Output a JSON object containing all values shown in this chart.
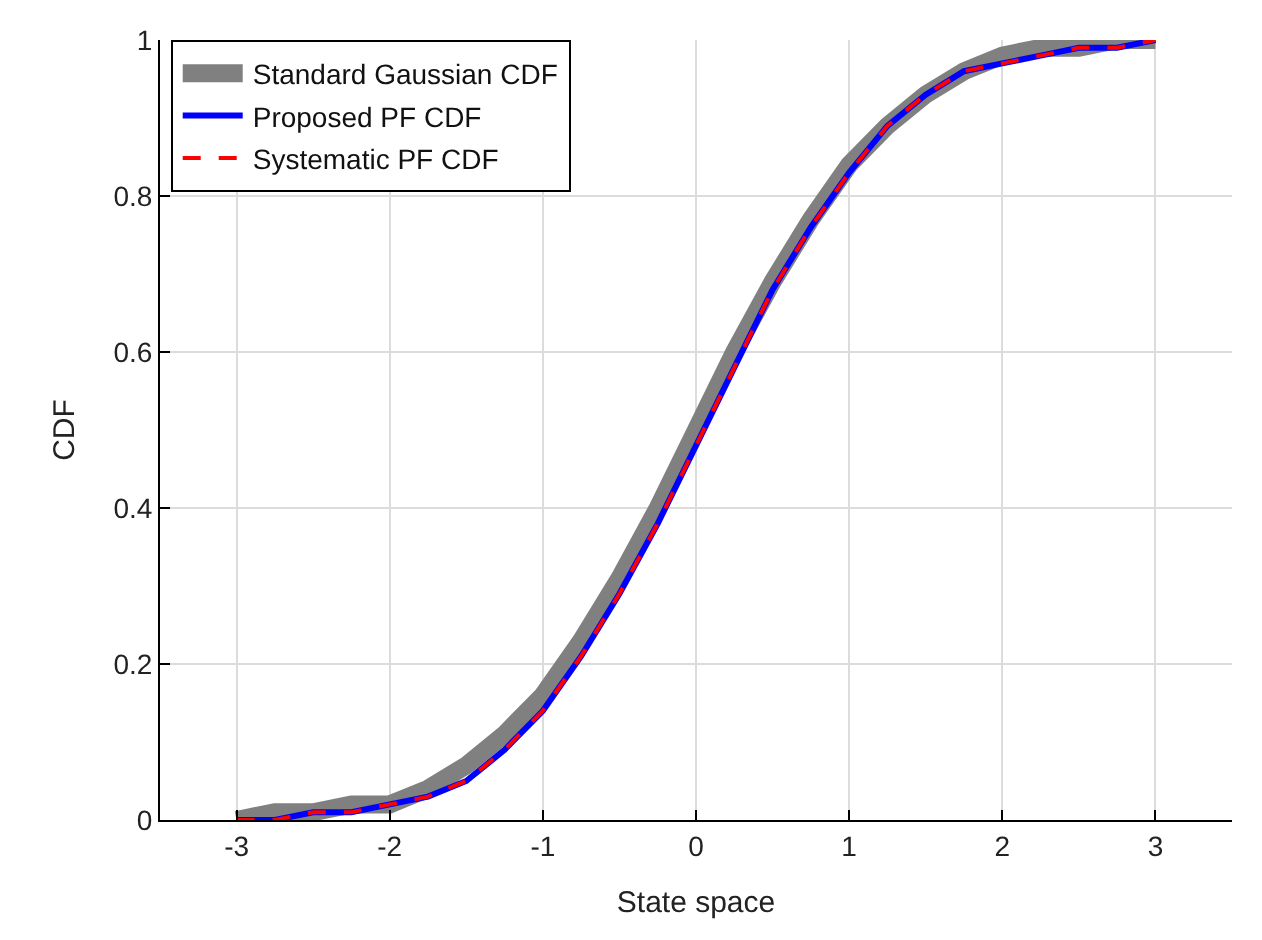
{
  "chart_data": {
    "type": "line",
    "xlabel": "State space",
    "ylabel": "CDF",
    "x": [
      -3,
      -2.75,
      -2.5,
      -2.25,
      -2,
      -1.75,
      -1.5,
      -1.25,
      -1,
      -0.75,
      -0.5,
      -0.25,
      0,
      0.25,
      0.5,
      0.75,
      1,
      1.25,
      1.5,
      1.75,
      2,
      2.25,
      2.5,
      2.75,
      3
    ],
    "series": [
      {
        "name": "Standard Gaussian CDF",
        "color": "#808080",
        "line_style": "solid",
        "values": [
          0.0,
          0.01,
          0.01,
          0.02,
          0.02,
          0.04,
          0.07,
          0.11,
          0.16,
          0.23,
          0.31,
          0.4,
          0.5,
          0.6,
          0.69,
          0.77,
          0.84,
          0.89,
          0.93,
          0.96,
          0.98,
          0.99,
          0.99,
          1.0,
          1.0
        ]
      },
      {
        "name": "Proposed PF CDF",
        "color": "#0000ff",
        "line_style": "solid",
        "values": [
          0.0,
          0.0,
          0.01,
          0.01,
          0.02,
          0.03,
          0.05,
          0.09,
          0.14,
          0.21,
          0.29,
          0.38,
          0.48,
          0.58,
          0.68,
          0.76,
          0.83,
          0.89,
          0.93,
          0.96,
          0.97,
          0.98,
          0.99,
          0.99,
          1.0
        ]
      },
      {
        "name": "Systematic PF CDF",
        "color": "#ff0000",
        "line_style": "dashed",
        "values": [
          0.0,
          0.0,
          0.01,
          0.01,
          0.02,
          0.03,
          0.05,
          0.09,
          0.14,
          0.21,
          0.29,
          0.38,
          0.48,
          0.58,
          0.68,
          0.76,
          0.83,
          0.89,
          0.93,
          0.96,
          0.97,
          0.98,
          0.99,
          0.99,
          1.0
        ]
      }
    ],
    "xlim": [
      -3.5,
      3.5
    ],
    "xticks": [
      -3,
      -2,
      -1,
      0,
      1,
      2,
      3
    ],
    "ylim": [
      0,
      1
    ],
    "yticks": [
      0,
      0.2,
      0.4,
      0.6,
      0.8,
      1
    ],
    "grid": true,
    "legend": "top left",
    "marker": "none"
  }
}
